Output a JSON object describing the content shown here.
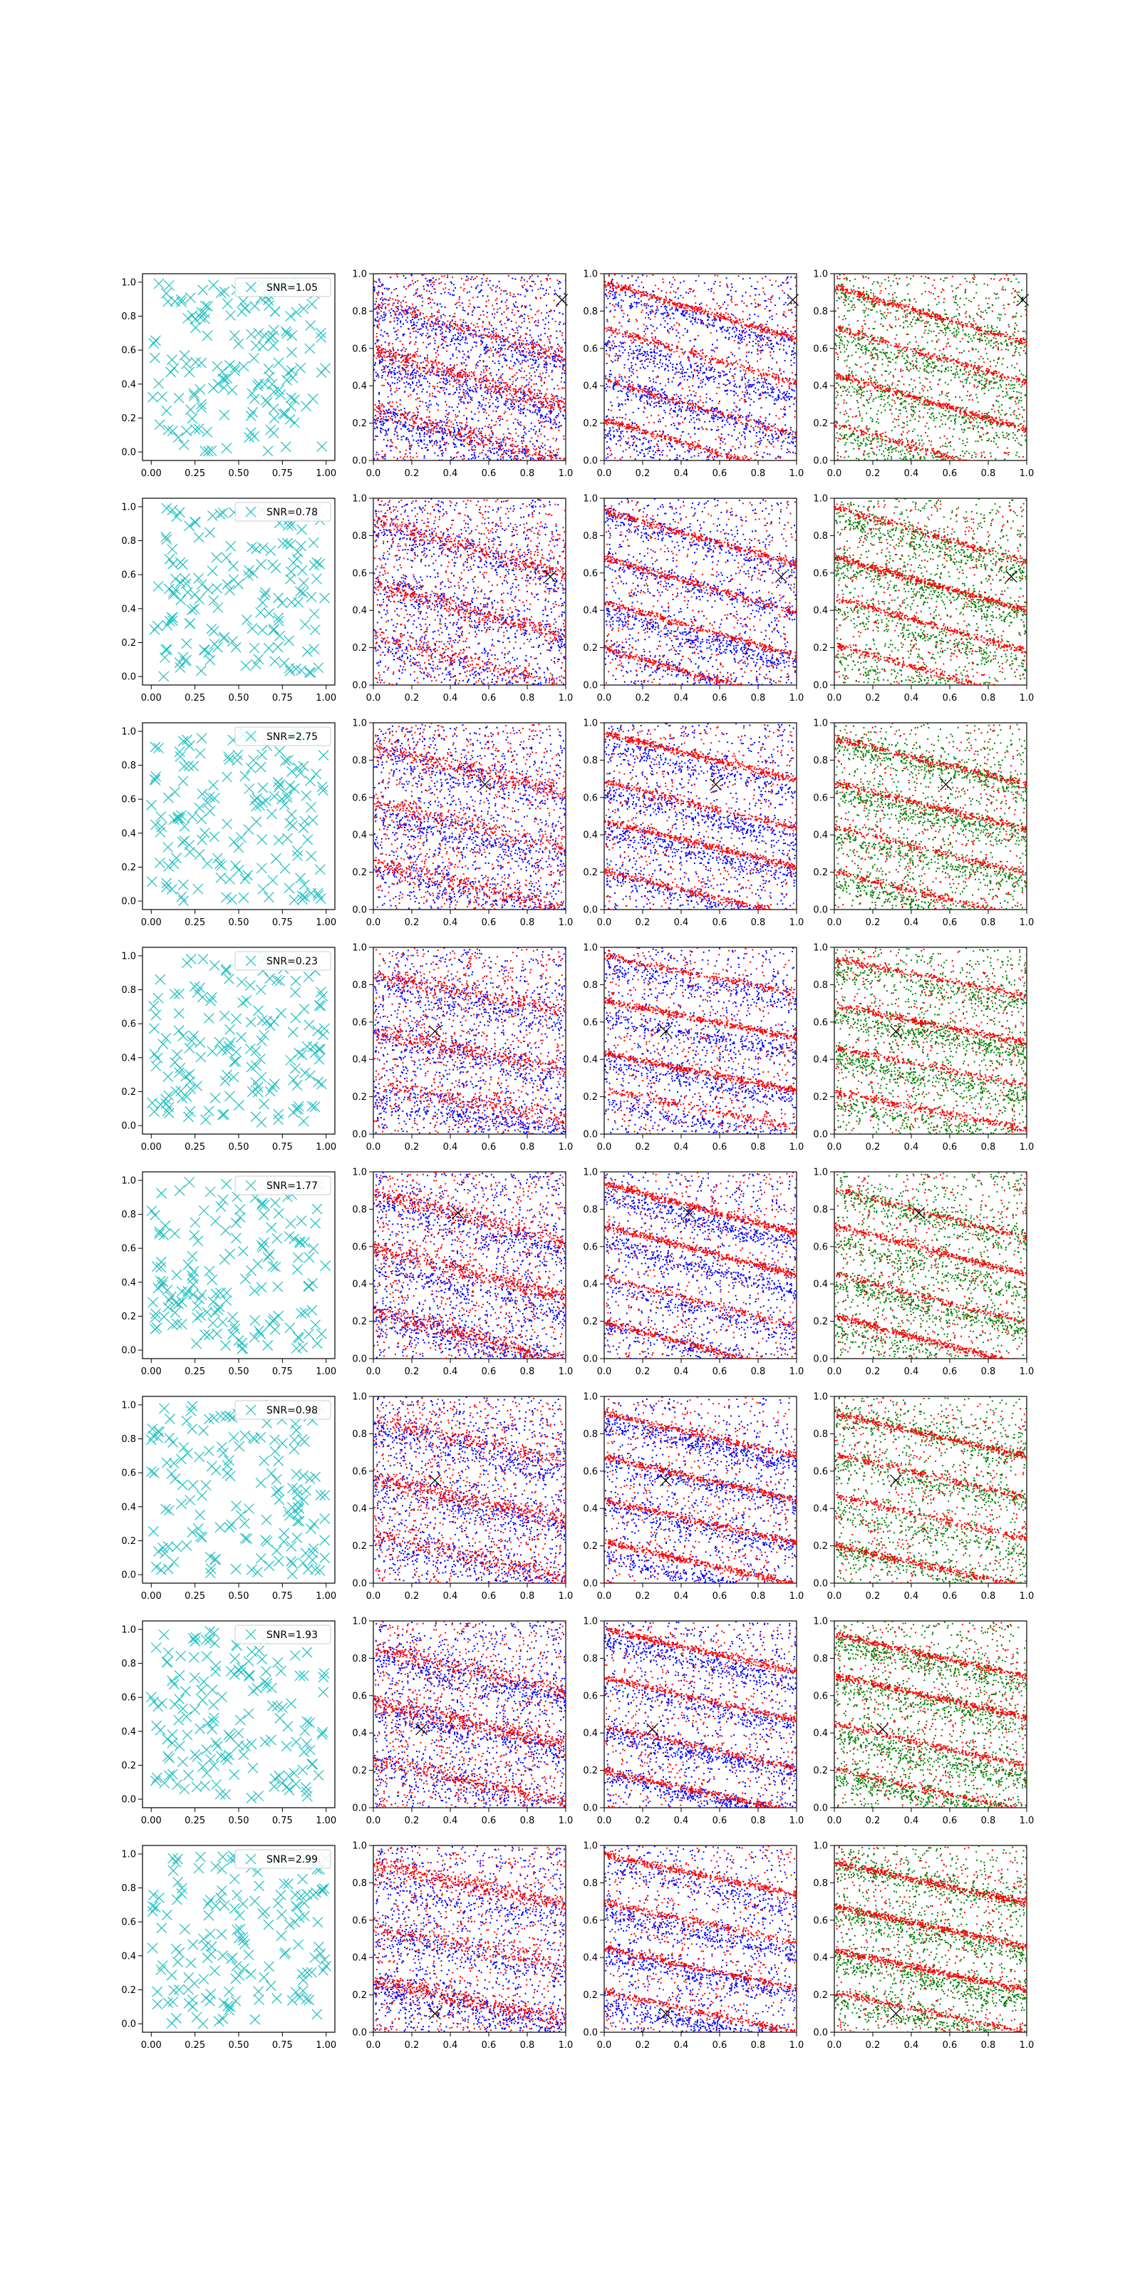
{
  "figure": {
    "description_free": true,
    "panel_columns": [
      "sampled-points",
      "scatter-red-blue-a",
      "scatter-red-blue-b",
      "scatter-red-green"
    ]
  },
  "colors": {
    "cyan": "#1fbfbf",
    "red": "#ff0000",
    "blue": "#0000ff",
    "green": "#008000",
    "marker": "#000000",
    "axis": "#000000"
  },
  "chart_data": {
    "type": "scatter",
    "xlim": [
      0.0,
      1.0
    ],
    "ylim": [
      0.0,
      1.0
    ],
    "col1_xlim": [
      -0.05,
      1.05
    ],
    "col1_ylim": [
      -0.05,
      1.05
    ],
    "col1_xticks": [
      "0.00",
      "0.25",
      "0.50",
      "0.75",
      "1.00"
    ],
    "col1_xtick_values": [
      0.0,
      0.25,
      0.5,
      0.75,
      1.0
    ],
    "yticks": [
      "0.0",
      "0.2",
      "0.4",
      "0.6",
      "0.8",
      "1.0"
    ],
    "ytick_values": [
      0.0,
      0.2,
      0.4,
      0.6,
      0.8,
      1.0
    ],
    "xticks": [
      "0.0",
      "0.2",
      "0.4",
      "0.6",
      "0.8",
      "1.0"
    ],
    "xtick_values": [
      0.0,
      0.2,
      0.4,
      0.6,
      0.8,
      1.0
    ],
    "rows": [
      {
        "legend": "SNR=1.05",
        "marker": [
          0.98,
          0.86
        ],
        "col2_colors": [
          "red",
          "blue"
        ],
        "col3_colors": [
          "red",
          "blue"
        ],
        "col4_colors": [
          "red",
          "green"
        ]
      },
      {
        "legend": "SNR=0.78",
        "marker": [
          0.92,
          0.58
        ],
        "col2_colors": [
          "red",
          "blue"
        ],
        "col3_colors": [
          "red",
          "blue"
        ],
        "col4_colors": [
          "red",
          "green"
        ]
      },
      {
        "legend": "SNR=2.75",
        "marker": [
          0.58,
          0.67
        ],
        "col2_colors": [
          "red",
          "blue"
        ],
        "col3_colors": [
          "red",
          "blue"
        ],
        "col4_colors": [
          "red",
          "green"
        ]
      },
      {
        "legend": "SNR=0.23",
        "marker": [
          0.32,
          0.55
        ],
        "col2_colors": [
          "red",
          "blue"
        ],
        "col3_colors": [
          "red",
          "blue"
        ],
        "col4_colors": [
          "red",
          "green"
        ]
      },
      {
        "legend": "SNR=1.77",
        "marker": [
          0.44,
          0.78
        ],
        "col2_colors": [
          "red",
          "blue"
        ],
        "col3_colors": [
          "red",
          "blue"
        ],
        "col4_colors": [
          "red",
          "green"
        ]
      },
      {
        "legend": "SNR=0.98",
        "marker": [
          0.32,
          0.55
        ],
        "col2_colors": [
          "red",
          "blue"
        ],
        "col3_colors": [
          "red",
          "blue"
        ],
        "col4_colors": [
          "red",
          "green"
        ]
      },
      {
        "legend": "SNR=1.93",
        "marker": [
          0.25,
          0.42
        ],
        "col2_colors": [
          "red",
          "blue"
        ],
        "col3_colors": [
          "red",
          "blue"
        ],
        "col4_colors": [
          "red",
          "green"
        ]
      },
      {
        "legend": "SNR=2.99",
        "marker": [
          0.32,
          0.1
        ],
        "col2_colors": [
          "red",
          "blue"
        ],
        "col3_colors": [
          "red",
          "blue"
        ],
        "col4_colors": [
          "red",
          "green"
        ]
      }
    ]
  }
}
